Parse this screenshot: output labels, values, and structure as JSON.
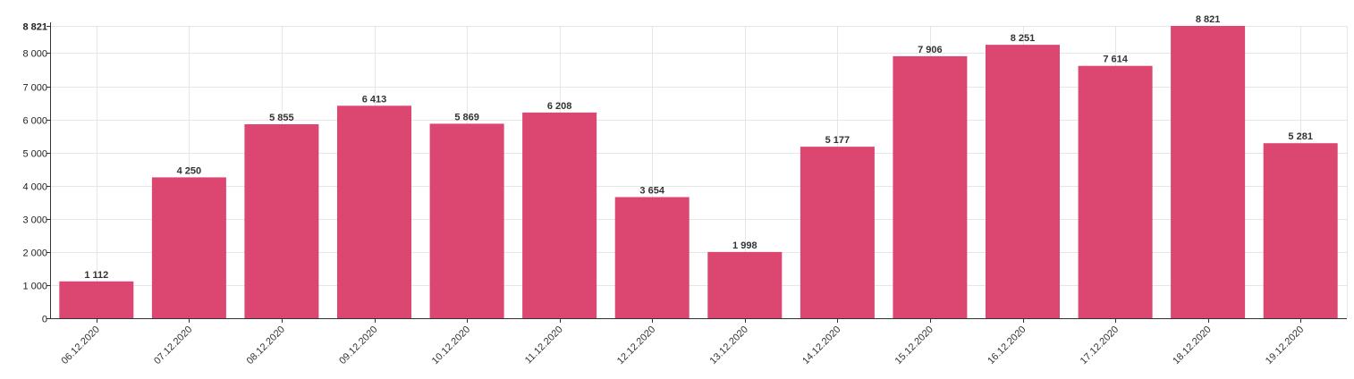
{
  "chart_data": {
    "type": "bar",
    "categories": [
      "06.12.2020",
      "07.12.2020",
      "08.12.2020",
      "09.12.2020",
      "10.12.2020",
      "11.12.2020",
      "12.12.2020",
      "13.12.2020",
      "14.12.2020",
      "15.12.2020",
      "16.12.2020",
      "17.12.2020",
      "18.12.2020",
      "19.12.2020"
    ],
    "values": [
      1112,
      4250,
      5855,
      6413,
      5869,
      6208,
      3654,
      1998,
      5177,
      7906,
      8251,
      7614,
      8821,
      5281
    ],
    "value_labels": [
      "1 112",
      "4 250",
      "5 855",
      "6 413",
      "5 869",
      "6 208",
      "3 654",
      "1 998",
      "5 177",
      "7 906",
      "8 251",
      "7 614",
      "8 821",
      "5 281"
    ],
    "y_ticks": [
      0,
      1000,
      2000,
      3000,
      4000,
      5000,
      6000,
      7000,
      8000,
      8821
    ],
    "y_tick_labels": [
      "0",
      "1 000",
      "2 000",
      "3 000",
      "4 000",
      "5 000",
      "6 000",
      "7 000",
      "8 000",
      "8 821"
    ],
    "ylim": [
      0,
      8821
    ],
    "title": "",
    "xlabel": "",
    "ylabel": "",
    "grid": true,
    "legend": "none",
    "bar_color": "#dc4771"
  }
}
